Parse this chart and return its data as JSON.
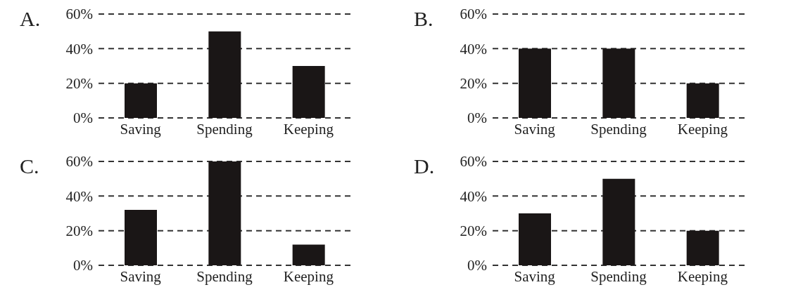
{
  "chart_data": [
    {
      "type": "bar",
      "title": "A.",
      "categories": [
        "Saving",
        "Spending",
        "Keeping"
      ],
      "values": [
        20,
        50,
        30
      ],
      "color": "#1a1616",
      "ylim": [
        0,
        60
      ],
      "yticks": [
        {
          "value": 0,
          "label": "0%"
        },
        {
          "value": 20,
          "label": "20%"
        },
        {
          "value": 40,
          "label": "40%"
        },
        {
          "value": 60,
          "label": "60%"
        }
      ],
      "grid": "y",
      "line_style": "dashed"
    },
    {
      "type": "bar",
      "title": "B.",
      "categories": [
        "Saving",
        "Spending",
        "Keeping"
      ],
      "values": [
        40,
        40,
        20
      ],
      "color": "#1a1616",
      "ylim": [
        0,
        60
      ],
      "yticks": [
        {
          "value": 0,
          "label": "0%"
        },
        {
          "value": 20,
          "label": "20%"
        },
        {
          "value": 40,
          "label": "40%"
        },
        {
          "value": 60,
          "label": "60%"
        }
      ],
      "grid": "y",
      "line_style": "dashed"
    },
    {
      "type": "bar",
      "title": "C.",
      "categories": [
        "Saving",
        "Spending",
        "Keeping"
      ],
      "values": [
        32,
        60,
        12
      ],
      "color": "#1a1616",
      "ylim": [
        0,
        60
      ],
      "yticks": [
        {
          "value": 0,
          "label": "0%"
        },
        {
          "value": 20,
          "label": "20%"
        },
        {
          "value": 40,
          "label": "40%"
        },
        {
          "value": 60,
          "label": "60%"
        }
      ],
      "grid": "y",
      "line_style": "dashed"
    },
    {
      "type": "bar",
      "title": "D.",
      "categories": [
        "Saving",
        "Spending",
        "Keeping"
      ],
      "values": [
        30,
        50,
        20
      ],
      "color": "#1a1616",
      "ylim": [
        0,
        60
      ],
      "yticks": [
        {
          "value": 0,
          "label": "0%"
        },
        {
          "value": 20,
          "label": "20%"
        },
        {
          "value": 40,
          "label": "40%"
        },
        {
          "value": 60,
          "label": "60%"
        }
      ],
      "grid": "y",
      "line_style": "dashed"
    }
  ]
}
